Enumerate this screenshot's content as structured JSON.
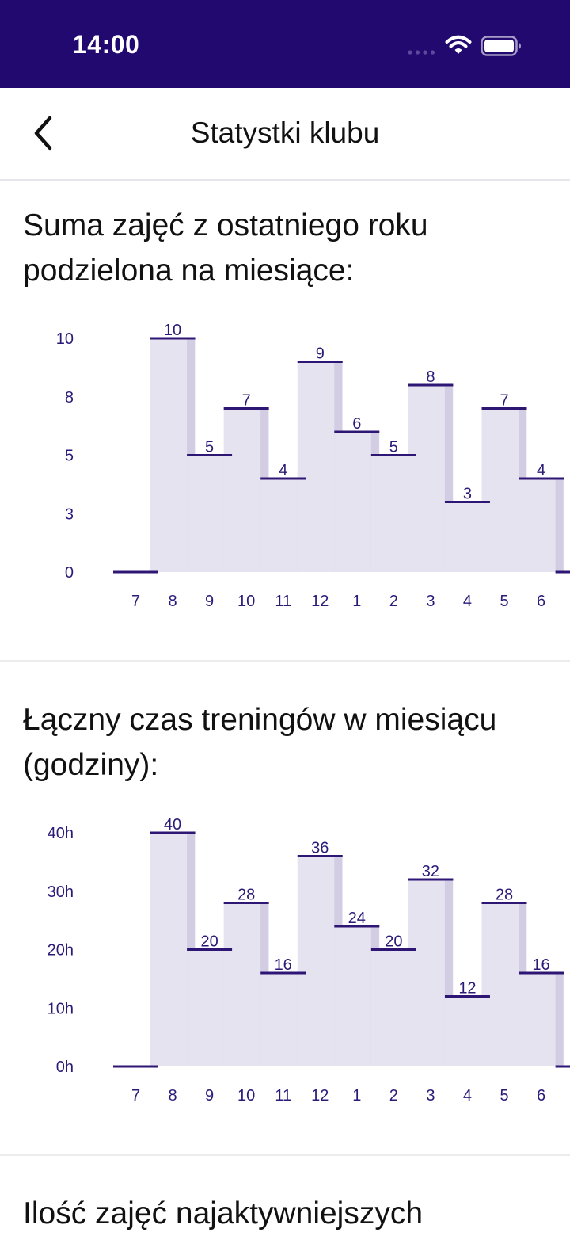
{
  "status_bar": {
    "time": "14:00"
  },
  "nav": {
    "title": "Statystki klubu",
    "back_icon": "chevron-left-icon"
  },
  "sections": [
    {
      "title": "Suma zajęć z ostatniego roku podzielona na miesiące:"
    },
    {
      "title": "Łączny czas treningów w miesiącu (godziny):"
    },
    {
      "title": "Ilość zajęć najaktywniejszych"
    }
  ],
  "colors": {
    "status_bar": "#22096f",
    "bar_fill": "#e6e3f0",
    "bar_stripe": "#d3cde3",
    "bar_line": "#2d1674",
    "axis_text": "#2b1a78"
  },
  "chart_data": [
    {
      "type": "bar",
      "categories": [
        "7",
        "8",
        "9",
        "10",
        "11",
        "12",
        "1",
        "2",
        "3",
        "4",
        "5",
        "6",
        "7"
      ],
      "values": [
        0,
        10,
        5,
        7,
        4,
        9,
        6,
        5,
        8,
        3,
        7,
        4,
        0
      ],
      "data_labels": [
        "",
        "10",
        "5",
        "7",
        "4",
        "9",
        "6",
        "5",
        "8",
        "3",
        "7",
        "4",
        ""
      ],
      "y_ticks": [
        0,
        2.5,
        5,
        7.5,
        10
      ],
      "y_tick_labels": [
        "0",
        "3",
        "5",
        "8",
        "10"
      ],
      "ylim": [
        0,
        10
      ],
      "title": "Suma zajęć z ostatniego roku podzielona na miesiące:",
      "xlabel": "",
      "ylabel": "",
      "grid": false
    },
    {
      "type": "bar",
      "categories": [
        "7",
        "8",
        "9",
        "10",
        "11",
        "12",
        "1",
        "2",
        "3",
        "4",
        "5",
        "6",
        "7"
      ],
      "values": [
        0,
        40,
        20,
        28,
        16,
        36,
        24,
        20,
        32,
        12,
        28,
        16,
        0
      ],
      "data_labels": [
        "",
        "40",
        "20",
        "28",
        "16",
        "36",
        "24",
        "20",
        "32",
        "12",
        "28",
        "16",
        ""
      ],
      "y_ticks": [
        0,
        10,
        20,
        30,
        40
      ],
      "y_tick_labels": [
        "0h",
        "10h",
        "20h",
        "30h",
        "40h"
      ],
      "ylim": [
        0,
        40
      ],
      "title": "Łączny czas treningów w miesiącu (godziny):",
      "xlabel": "",
      "ylabel": "",
      "grid": false
    }
  ]
}
